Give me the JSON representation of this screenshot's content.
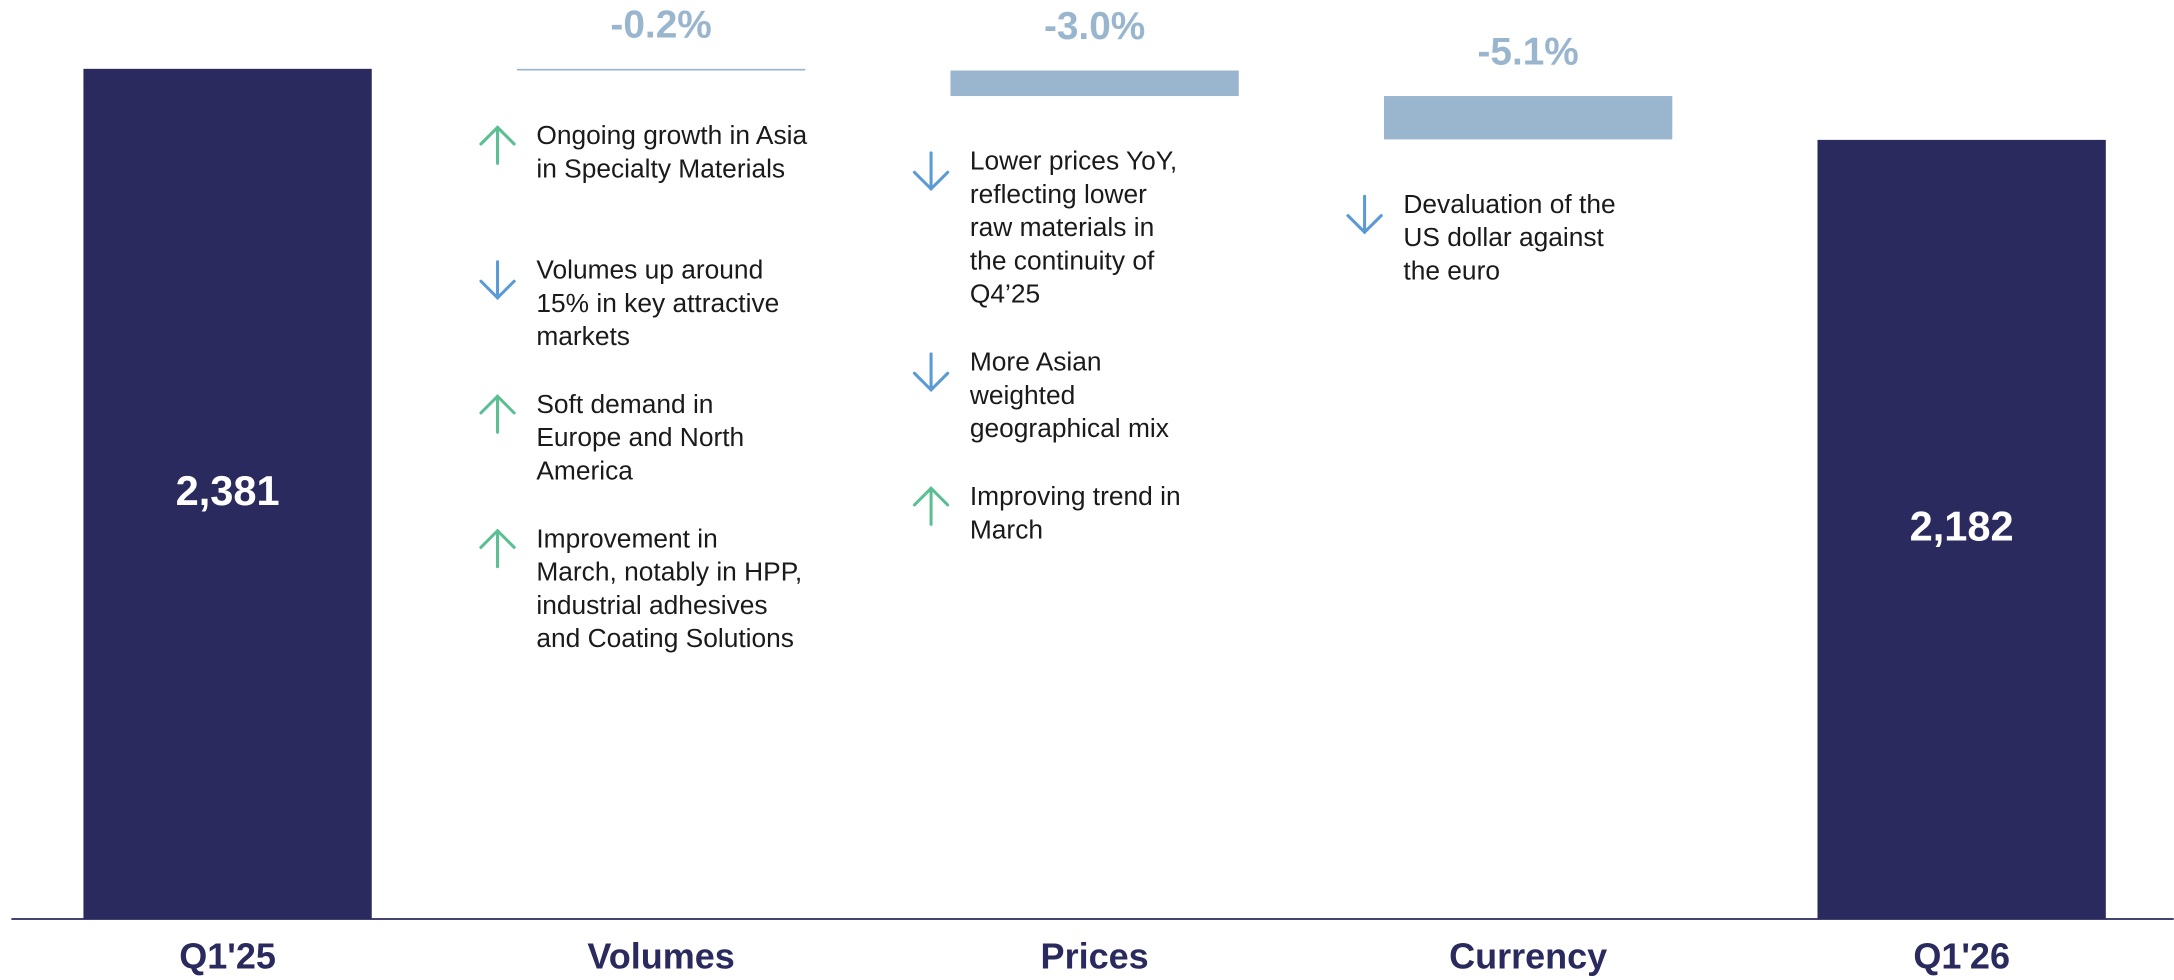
{
  "chart_data": {
    "type": "waterfall",
    "categories": [
      "Q1'25",
      "Volumes",
      "Prices",
      "Currency",
      "Q1'26"
    ],
    "kinds": [
      "total",
      "change",
      "change",
      "change",
      "total"
    ],
    "values": [
      2381,
      -0.2,
      -3.0,
      -5.1,
      2182
    ],
    "value_labels": [
      "2,381",
      "-0.2%",
      "-3.0%",
      "-5.1%",
      "2,182"
    ],
    "colors": {
      "total": "#2a2a5e",
      "change": "#9ab6cf",
      "up": "#5cbf94",
      "down": "#5b9bd5"
    },
    "notes": [
      [],
      [
        {
          "direction": "up",
          "text": "Ongoing growth in Asia\nin Specialty Materials"
        },
        {
          "direction": "down",
          "text": "Volumes up around\n15% in key attractive\nmarkets"
        },
        {
          "direction": "up",
          "text": "Soft demand in\nEurope and North\nAmerica"
        },
        {
          "direction": "up",
          "text": "Improvement in\nMarch, notably in HPP,\nindustrial adhesives\nand Coating Solutions"
        }
      ],
      [
        {
          "direction": "down",
          "text": "Lower prices YoY,\nreflecting lower\nraw materials in\nthe continuity of\nQ4’25"
        },
        {
          "direction": "down",
          "text": "More Asian\nweighted\ngeographical mix"
        },
        {
          "direction": "up",
          "text": "Improving trend in\nMarch"
        }
      ],
      [
        {
          "direction": "down",
          "text": "Devaluation of the\nUS dollar against\nthe euro"
        }
      ],
      []
    ]
  }
}
